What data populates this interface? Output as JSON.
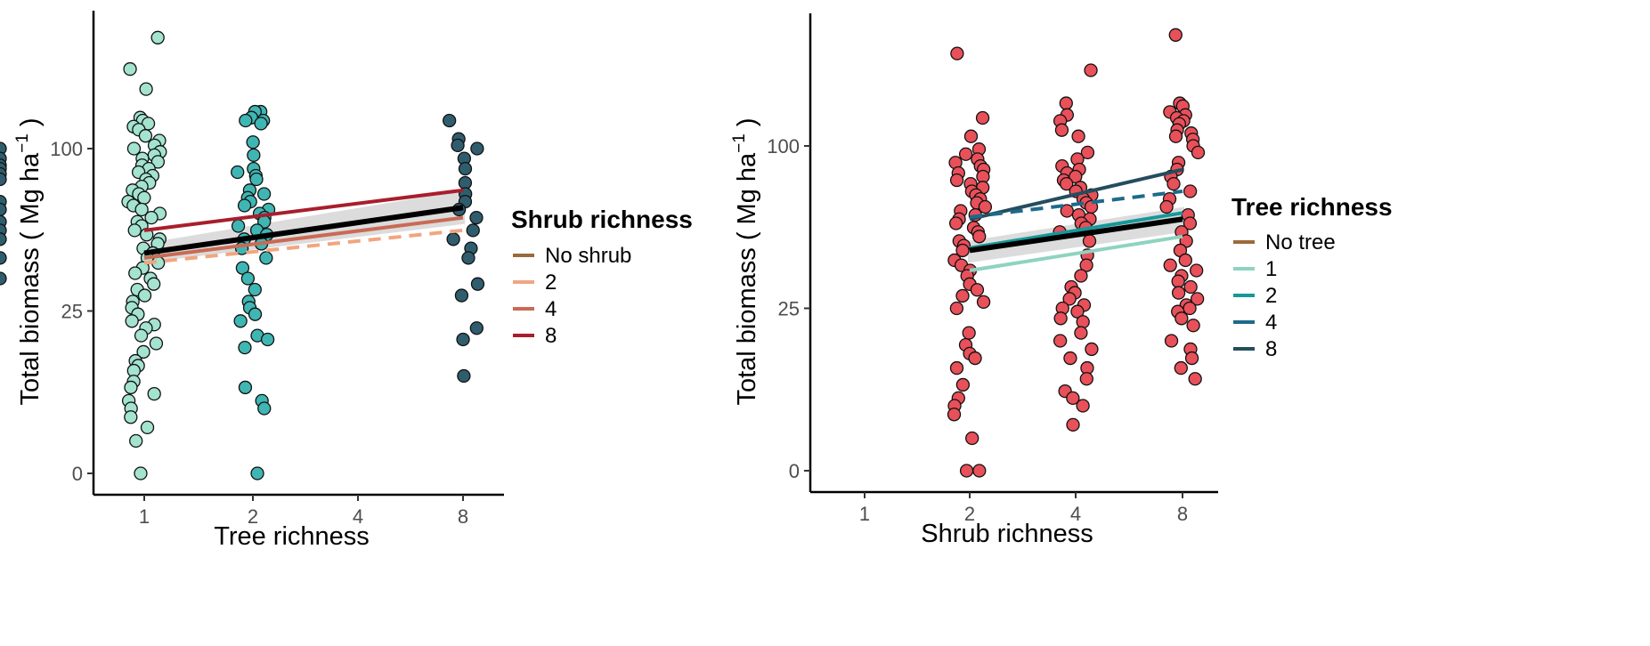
{
  "chart_data": [
    {
      "type": "scatter",
      "xlabel": "Tree richness",
      "ylabel": "Total biomass ( Mg ha",
      "ylabel_superscript": "−1",
      "ylabel_close": ")",
      "categories": [
        "1",
        "2",
        "4",
        "8"
      ],
      "y_scale": "sqrt",
      "y_ticks": [
        0,
        25,
        100
      ],
      "ylim": [
        0,
        185
      ],
      "legend": {
        "title": "Shrub richness",
        "position": "right",
        "entries": [
          {
            "label": "No shrub",
            "color": "#9a6a3a",
            "dash": "solid"
          },
          {
            "label": "2",
            "color": "#f0a680",
            "dash": "solid"
          },
          {
            "label": "4",
            "color": "#c96a55",
            "dash": "solid"
          },
          {
            "label": "8",
            "color": "#a81e2d",
            "dash": "solid"
          }
        ]
      },
      "point_colors": [
        "#a3e3cf",
        "#3fb6b3",
        "#3d84b8",
        "#2f5d6e"
      ],
      "points": [
        {
          "cat": 1,
          "values": [
            180,
            155,
            140,
            120,
            118,
            116,
            114,
            112,
            108,
            105,
            102,
            100,
            98,
            96,
            94,
            92,
            90,
            88,
            86,
            84,
            82,
            80,
            78,
            76,
            74,
            72,
            70,
            68,
            66,
            64,
            62,
            60,
            58,
            56,
            54,
            52,
            50,
            48,
            46,
            44,
            42,
            40,
            38,
            36,
            34,
            32,
            30,
            28,
            26,
            24,
            22,
            21,
            20,
            18,
            16,
            14,
            12,
            11,
            10,
            8,
            7,
            6,
            5,
            4,
            3,
            2,
            1,
            0
          ]
        },
        {
          "cat": 2,
          "values": [
            124,
            124,
            120,
            118,
            118,
            116,
            104,
            96,
            88,
            86,
            84,
            82,
            76,
            74,
            72,
            70,
            68,
            66,
            64,
            62,
            60,
            58,
            56,
            54,
            52,
            50,
            48,
            44,
            40,
            36,
            32,
            28,
            26,
            24,
            22,
            18,
            17,
            15,
            7,
            5,
            4,
            0
          ]
        },
        {
          "cat": 4,
          "values": [
            118,
            106,
            102,
            100,
            94,
            88,
            80,
            74,
            70,
            66,
            62,
            56,
            52,
            48,
            44,
            34,
            30,
            20,
            17,
            9
          ]
        },
        {
          "cat": 8,
          "values": [
            100,
            94,
            90,
            88,
            85,
            82,
            70,
            66,
            60,
            56,
            52,
            44,
            36
          ]
        }
      ],
      "series": [
        {
          "name": "8",
          "color": "#a81e2d",
          "dash": "solid",
          "x": [
            "1",
            "8"
          ],
          "y": [
            56,
            76
          ]
        },
        {
          "name": "4",
          "color": "#c96a55",
          "dash": "solid",
          "x": [
            "1",
            "8"
          ],
          "y": [
            44,
            62
          ]
        },
        {
          "name": "2",
          "color": "#f0a680",
          "dash": "dashed",
          "x": [
            "1",
            "8"
          ],
          "y": [
            42,
            56
          ]
        },
        {
          "name": "No shrub",
          "color": "#000000",
          "dash": "solid",
          "x": [
            "1",
            "8"
          ],
          "y": [
            46,
            67
          ],
          "band": [
            [
              42,
              50
            ],
            [
              59,
              76
            ]
          ]
        }
      ]
    },
    {
      "type": "scatter",
      "xlabel": "Shrub richness",
      "ylabel": "Total biomass ( Mg ha",
      "ylabel_superscript": "−1",
      "ylabel_close": ")",
      "categories": [
        "1",
        "2",
        "4",
        "8"
      ],
      "y_scale": "sqrt",
      "y_ticks": [
        0,
        25,
        100
      ],
      "ylim": [
        0,
        185
      ],
      "legend": {
        "title": "Tree richness",
        "position": "right",
        "entries": [
          {
            "label": "No tree",
            "color": "#9a6a3a",
            "dash": "solid"
          },
          {
            "label": "1",
            "color": "#8ed3c0",
            "dash": "solid"
          },
          {
            "label": "2",
            "color": "#16989a",
            "dash": "solid"
          },
          {
            "label": "4",
            "color": "#1e6a8a",
            "dash": "solid"
          },
          {
            "label": "8",
            "color": "#244d5e",
            "dash": "solid"
          }
        ]
      },
      "point_colors": [
        "#f9c2ad",
        "#e8505a",
        "#e8505a",
        "#e8505a"
      ],
      "points": [
        {
          "cat": 2,
          "values": [
            165,
            118,
            106,
            98,
            95,
            92,
            90,
            88,
            86,
            84,
            82,
            80,
            78,
            76,
            74,
            72,
            70,
            68,
            66,
            64,
            62,
            60,
            58,
            56,
            54,
            52,
            50,
            48,
            46,
            42,
            40,
            38,
            36,
            33,
            31,
            29,
            27,
            25,
            18,
            15,
            13,
            12,
            10,
            7,
            5,
            4,
            3,
            1,
            0,
            0
          ]
        },
        {
          "cat": 3,
          "values": [
            152,
            128,
            120,
            116,
            110,
            106,
            96,
            92,
            88,
            86,
            84,
            82,
            80,
            78,
            76,
            74,
            72,
            70,
            68,
            66,
            64,
            62,
            60,
            58,
            56,
            54,
            50,
            44,
            40,
            36,
            32,
            30,
            28,
            26,
            25,
            24,
            22,
            21,
            18,
            16,
            14,
            12,
            10,
            8,
            6,
            5,
            4,
            2
          ]
        },
        {
          "cat": 4,
          "values": [
            180,
            128,
            126,
            122,
            120,
            118,
            116,
            114,
            110,
            108,
            106,
            104,
            100,
            96,
            90,
            86,
            82,
            78,
            74,
            70,
            66,
            62,
            58,
            54,
            50,
            46,
            42,
            40,
            38,
            36,
            34,
            32,
            30,
            28,
            26,
            25,
            24,
            22,
            20,
            16,
            14,
            12,
            10,
            8
          ]
        }
      ],
      "series": [
        {
          "name": "8",
          "color": "#244d5e",
          "dash": "solid",
          "x": [
            "2",
            "8"
          ],
          "y": [
            60,
            86
          ]
        },
        {
          "name": "4",
          "color": "#1e6a8a",
          "dash": "dashed",
          "x": [
            "2",
            "8"
          ],
          "y": [
            61,
            74
          ]
        },
        {
          "name": "2",
          "color": "#16989a",
          "dash": "solid",
          "x": [
            "2",
            "8"
          ],
          "y": [
            47,
            63
          ]
        },
        {
          "name": "1",
          "color": "#8ed3c0",
          "dash": "solid",
          "x": [
            "2",
            "8"
          ],
          "y": [
            38,
            52
          ]
        },
        {
          "name": "No tree",
          "color": "#000000",
          "dash": "solid",
          "x": [
            "2",
            "8"
          ],
          "y": [
            46,
            60
          ],
          "band": [
            [
              41,
              50
            ],
            [
              54,
              66
            ]
          ]
        }
      ]
    }
  ]
}
